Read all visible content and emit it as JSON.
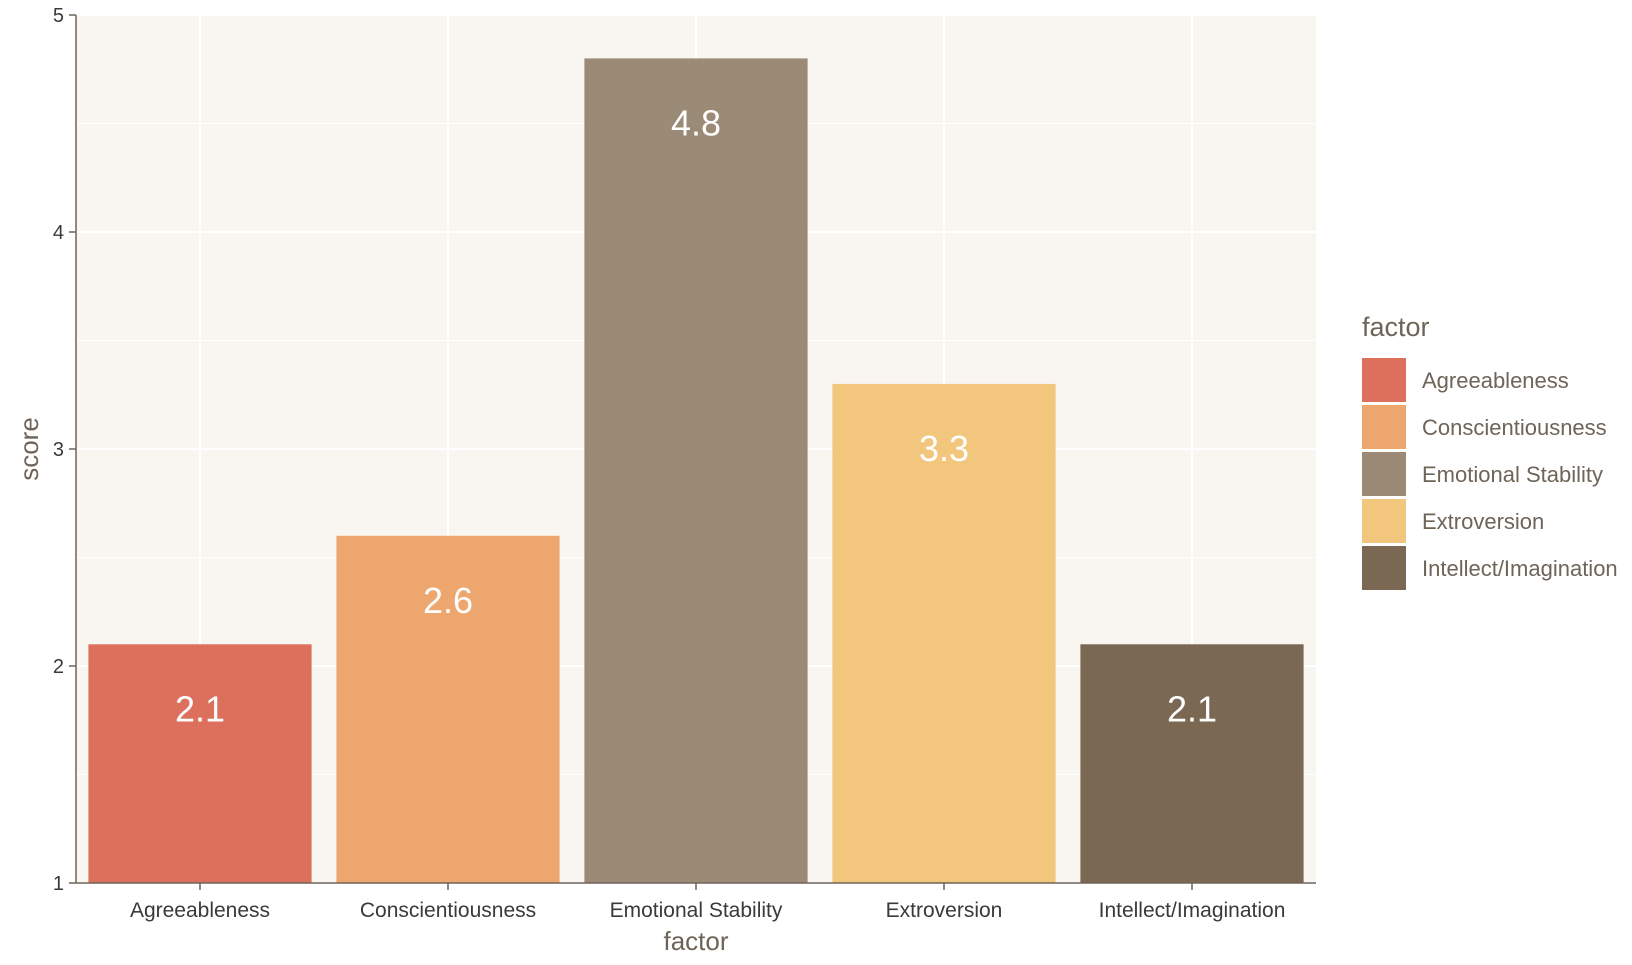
{
  "chart_data": {
    "type": "bar",
    "categories": [
      "Agreeableness",
      "Conscientiousness",
      "Emotional Stability",
      "Extroversion",
      "Intellect/Imagination"
    ],
    "values": [
      2.1,
      2.6,
      4.8,
      3.3,
      2.1
    ],
    "data_labels": [
      "2.1",
      "2.6",
      "4.8",
      "3.3",
      "2.1"
    ],
    "colors": [
      "#dc705c",
      "#eea66f",
      "#9b8a76",
      "#f2c67c",
      "#7a6853"
    ],
    "xlabel": "factor",
    "ylabel": "score",
    "ylim": [
      1,
      5
    ],
    "yticks": [
      1,
      2,
      3,
      4,
      5
    ],
    "ytick_labels": [
      "1",
      "2",
      "3",
      "4",
      "5"
    ],
    "grid": true,
    "panel_background": "#f9f6f2",
    "legend": {
      "title": "factor",
      "position": "right",
      "entries": [
        "Agreeableness",
        "Conscientiousness",
        "Emotional Stability",
        "Extroversion",
        "Intellect/Imagination"
      ]
    }
  }
}
